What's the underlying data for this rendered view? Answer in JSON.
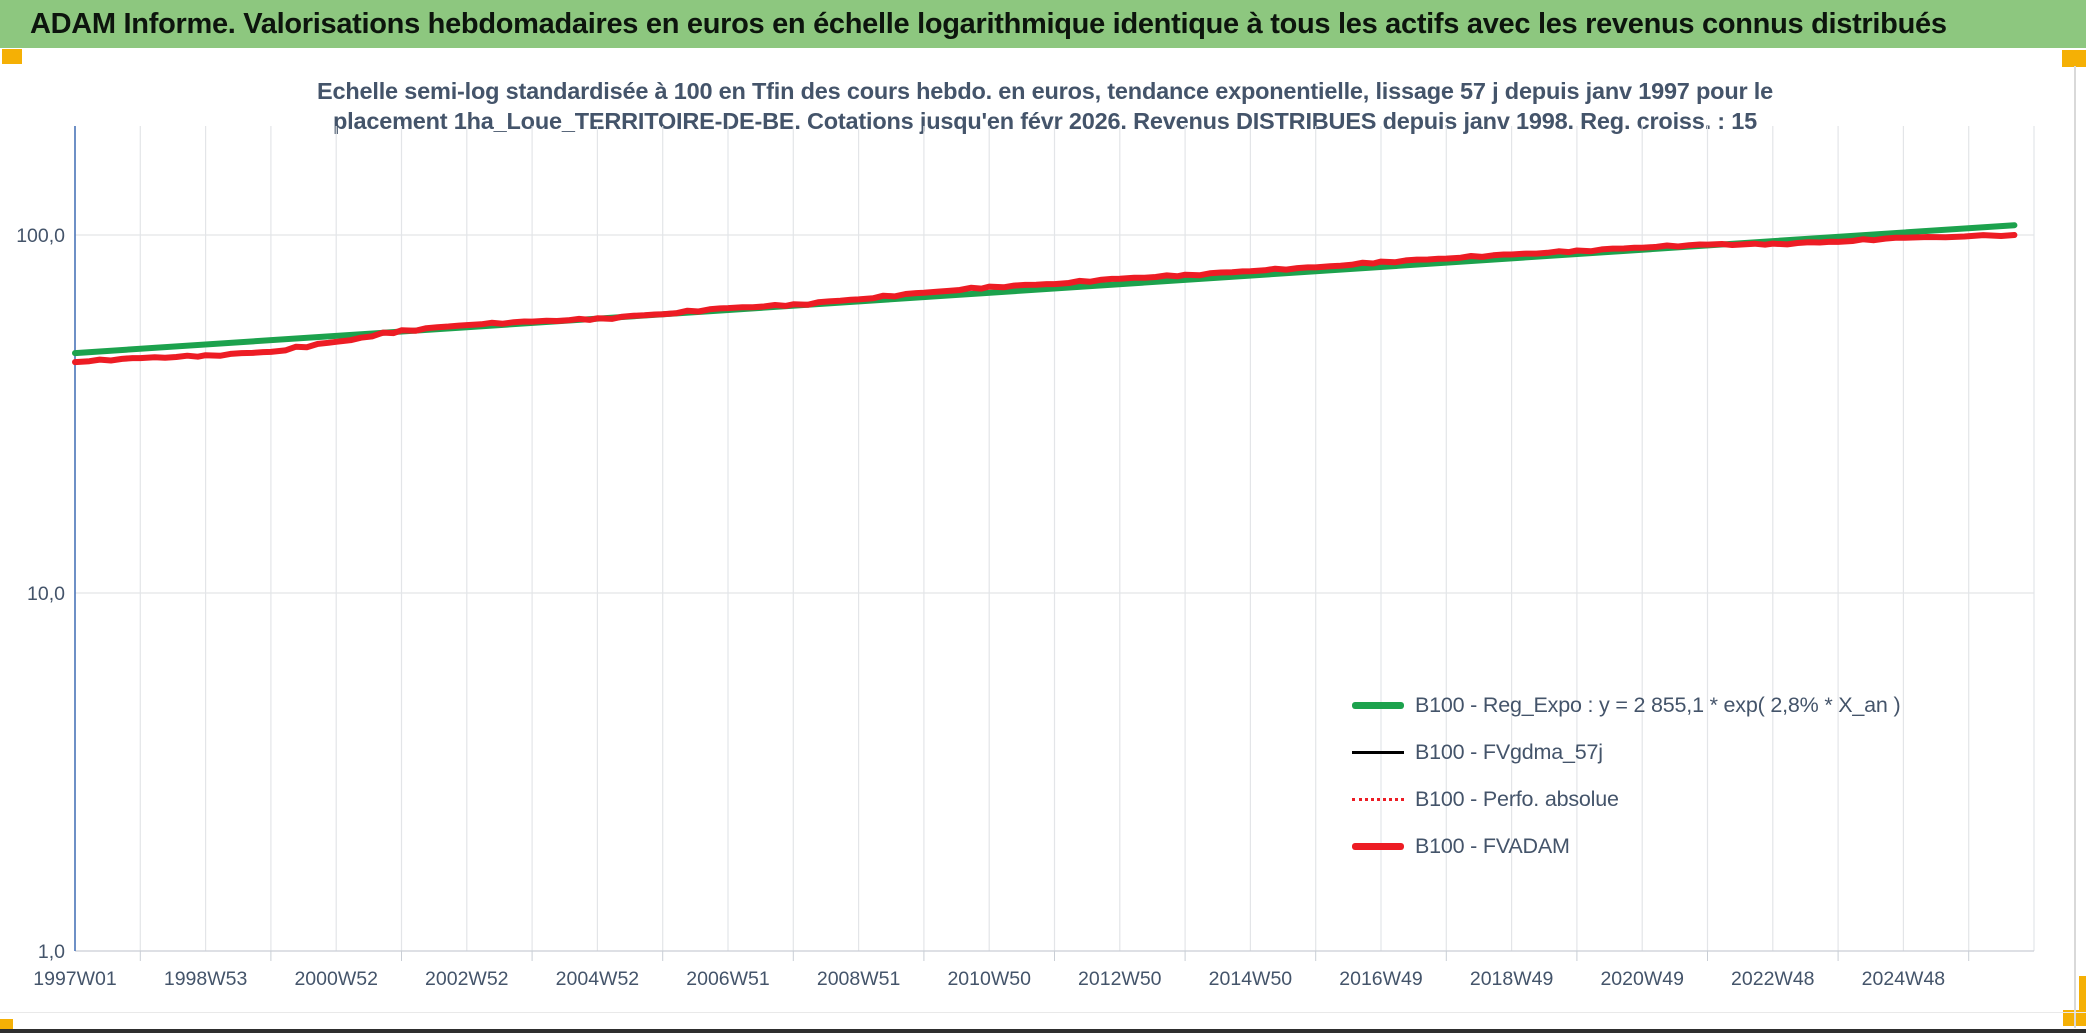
{
  "window": {
    "title": "ADAM Informe. Valorisations hebdomadaires en euros en échelle logarithmique identique à tous les actifs avec les revenus connus distribués",
    "header_bg": "#8DC77F",
    "corner_marker_color": "#F5B005"
  },
  "chart_data": {
    "type": "line",
    "title_line1": "Echelle semi-log standardisée à 100 en Tfin des cours hebdo. en euros, tendance exponentielle, lissage 57 j depuis janv 1997 pour le",
    "title_line2": "placement 1ha_Loue_TERRITOIRE-DE-BE. Cotations jusqu'en févr 2026. Revenus DISTRIBUES depuis janv 1998. Reg. croiss. : 15",
    "grid": true,
    "legend_position": "inside-lower-right",
    "y_axis": {
      "scale": "log",
      "range": [
        1,
        200
      ],
      "ticks": [
        {
          "label": "100,0",
          "value": 100
        },
        {
          "label": "10,0",
          "value": 10
        },
        {
          "label": "1,0",
          "value": 1
        }
      ]
    },
    "x_axis": {
      "range_years": [
        1997,
        2026.8
      ],
      "tick_labels": [
        "1997W01",
        "1998W53",
        "2000W52",
        "2002W52",
        "2004W52",
        "2006W51",
        "2008W51",
        "2010W50",
        "2012W50",
        "2014W50",
        "2016W49",
        "2018W49",
        "2020W49",
        "2022W48",
        "2024W48"
      ]
    },
    "legend": [
      {
        "label": "B100 - Reg_Expo : y = 2 855,1 * exp( 2,8% *  X_an )",
        "color": "#1CA24D",
        "style": "thick"
      },
      {
        "label": "B100 - FVgdma_57j",
        "color": "#000000",
        "style": "thin"
      },
      {
        "label": "B100 - Perfo. absolue",
        "color": "#ED1C24",
        "style": "dotted"
      },
      {
        "label": "B100 - FVADAM",
        "color": "#ED1C24",
        "style": "thick"
      }
    ],
    "series": [
      {
        "name": "B100 - Reg_Expo",
        "color": "#1CA24D",
        "line_width": 6,
        "style": "straight",
        "x_years": [
          1997,
          2026.7
        ],
        "values": [
          46.8,
          106.5
        ]
      },
      {
        "name": "B100 - FVADAM",
        "color": "#ED1C24",
        "line_width": 6,
        "style": "steps",
        "x_years": [
          1997,
          1998,
          1999,
          2000,
          2001,
          2002,
          2003,
          2004,
          2005,
          2006,
          2007,
          2008,
          2009,
          2010,
          2011,
          2012,
          2013,
          2014,
          2015,
          2016,
          2017,
          2018,
          2019,
          2020,
          2021,
          2022,
          2023,
          2024,
          2025,
          2026.7
        ],
        "values": [
          44.3,
          45.3,
          46.0,
          47.3,
          50.3,
          54.0,
          56.2,
          57.3,
          58.3,
          60.3,
          62.5,
          63.8,
          66.3,
          69.0,
          71.5,
          73.2,
          75.5,
          77.2,
          79.5,
          81.2,
          84.0,
          86.2,
          88.2,
          90.2,
          92.5,
          94.0,
          94.3,
          96.0,
          98.2,
          100.0
        ]
      }
    ]
  }
}
